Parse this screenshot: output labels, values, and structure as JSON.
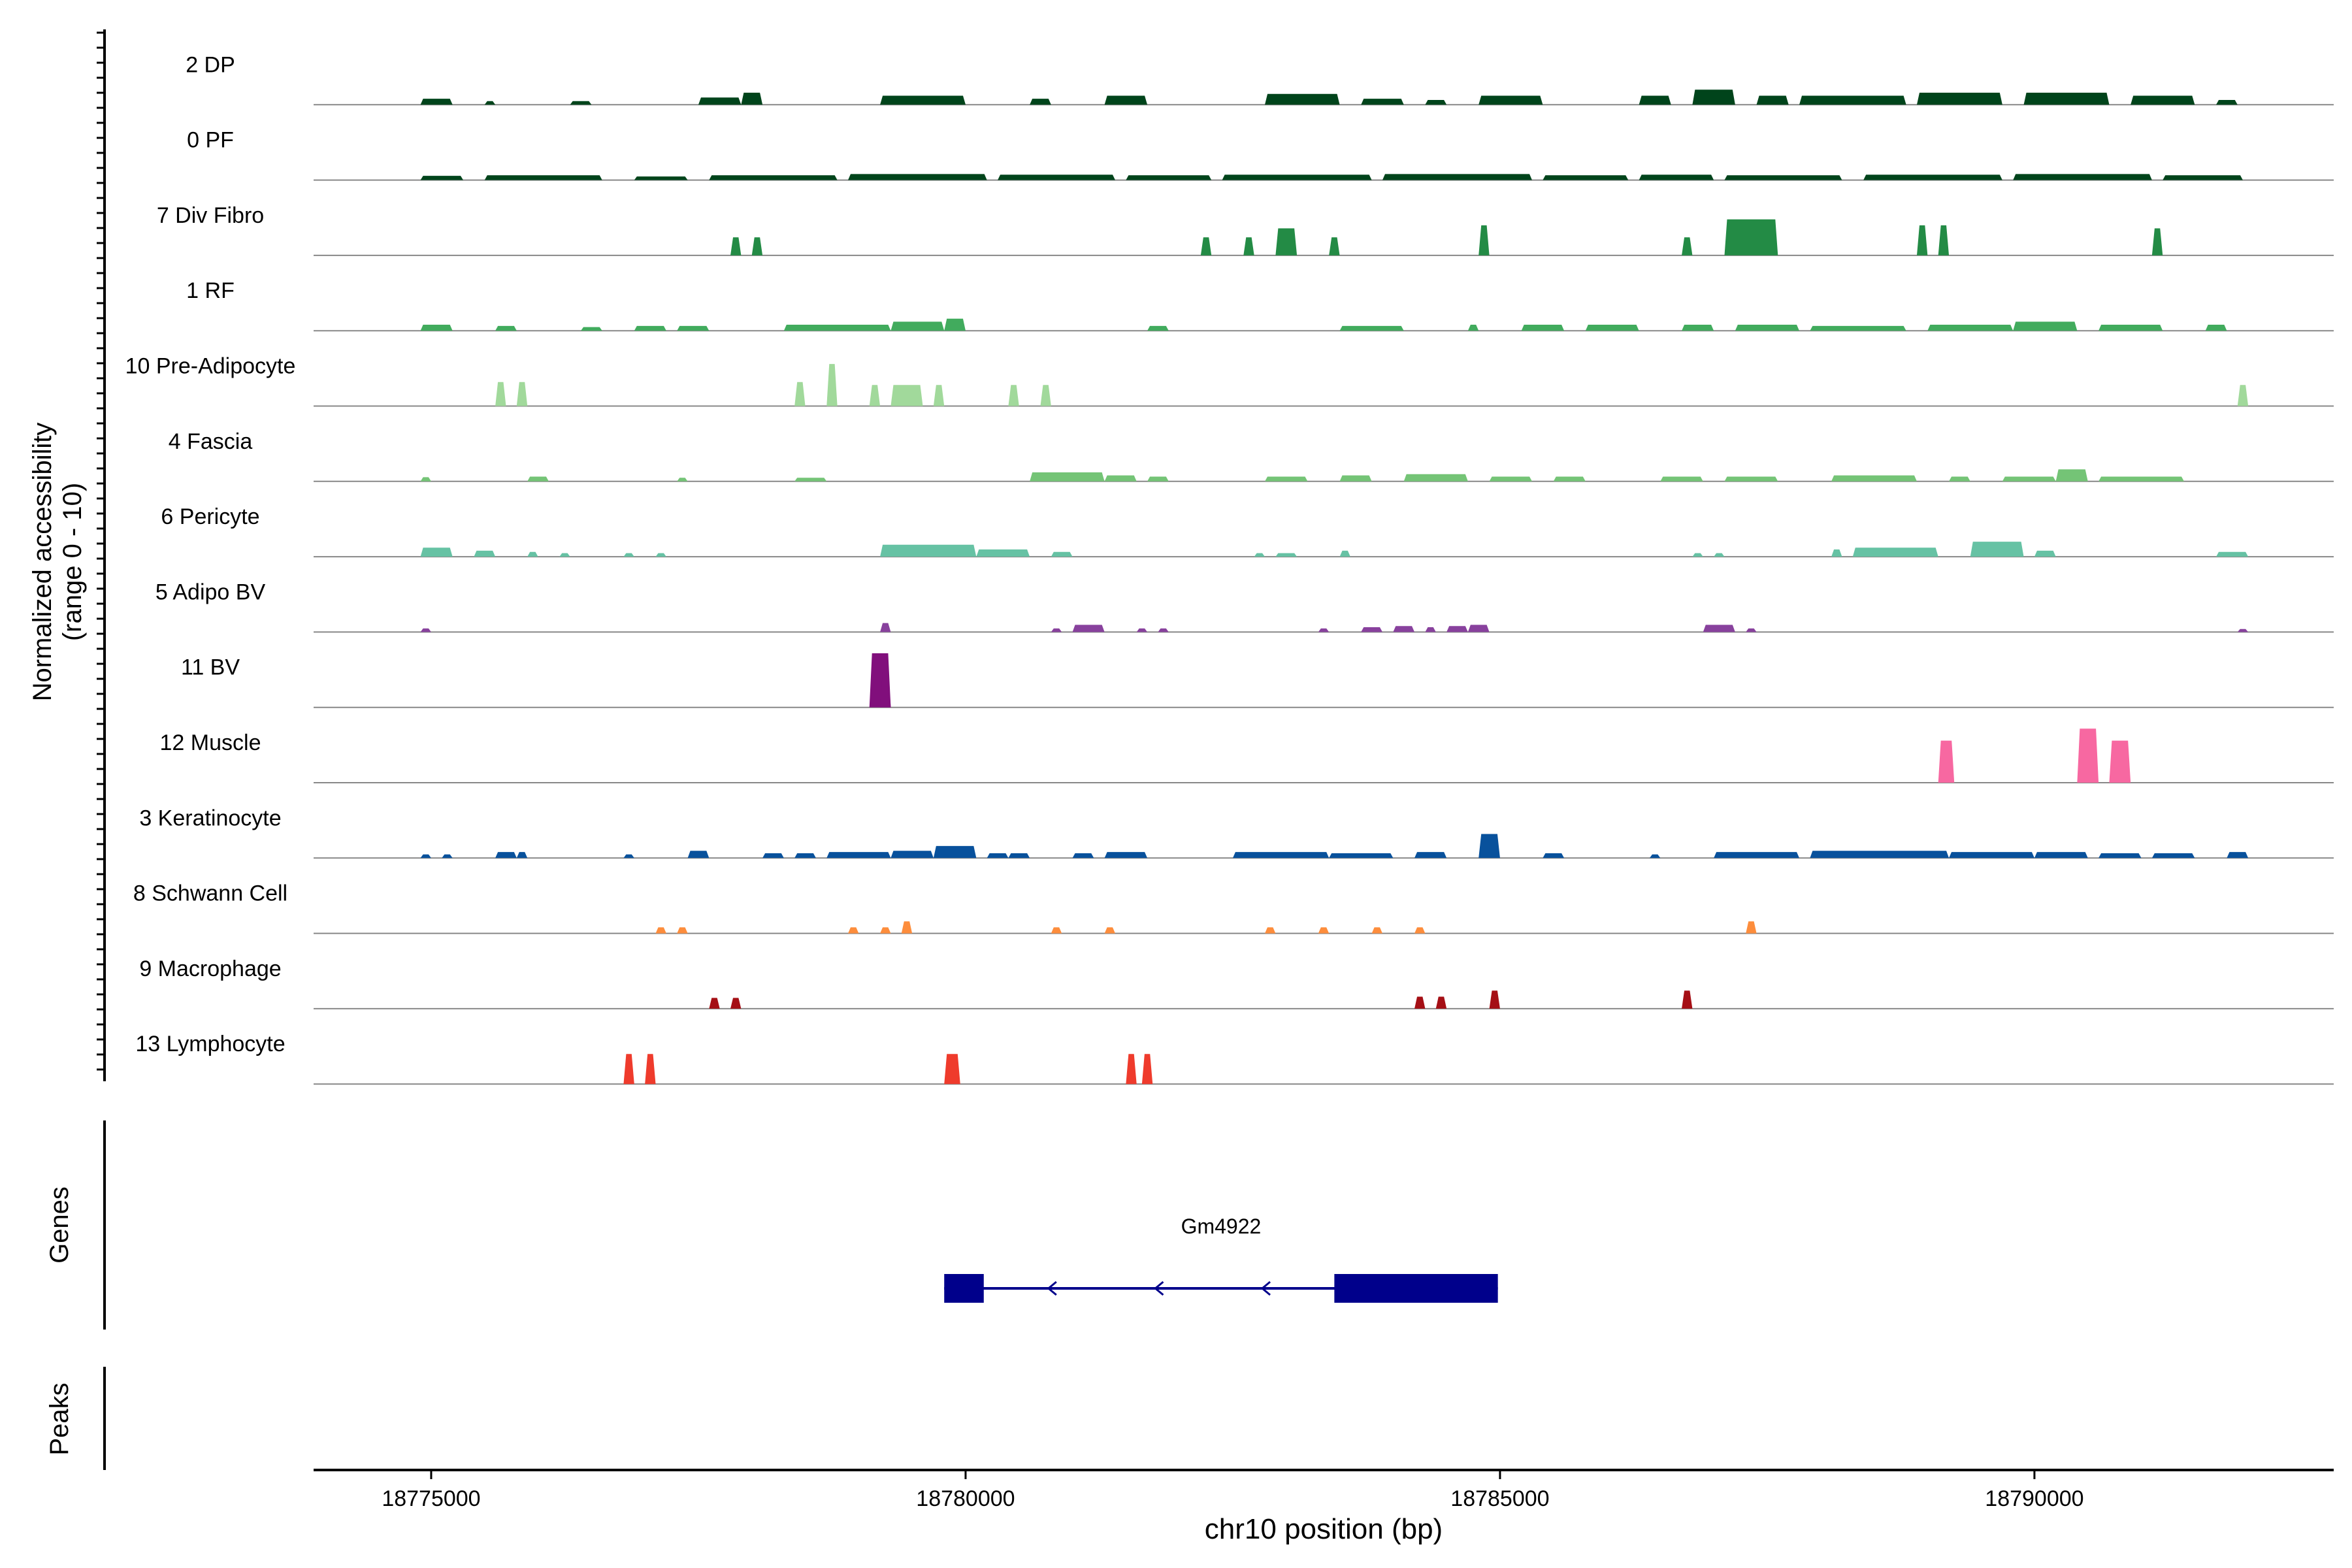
{
  "chart_data": {
    "type": "area",
    "title": "",
    "ylabel_line1": "Normalized accessibility",
    "ylabel_line2": "(range 0 - 10)",
    "xlabel": "chr10 position (bp)",
    "xlim": [
      18773900,
      18792800
    ],
    "ylim": [
      0,
      10
    ],
    "x_ticks": [
      18775000,
      18780000,
      18785000,
      18790000
    ],
    "x_tick_labels": [
      "18775000",
      "18780000",
      "18785000",
      "18790000"
    ],
    "tracks": [
      {
        "name": "2 DP",
        "color": "#00441b",
        "peaks": [
          [
            18774900,
            18775200,
            1
          ],
          [
            18775500,
            18775600,
            0.6
          ],
          [
            18776300,
            18776500,
            0.6
          ],
          [
            18777500,
            18777900,
            1.2
          ],
          [
            18777900,
            18778100,
            2
          ],
          [
            18779200,
            18780000,
            1.5
          ],
          [
            18780600,
            18780800,
            1
          ],
          [
            18781300,
            18781700,
            1.5
          ],
          [
            18782800,
            18783500,
            1.8
          ],
          [
            18783700,
            18784100,
            1
          ],
          [
            18784300,
            18784500,
            0.8
          ],
          [
            18784800,
            18785400,
            1.5
          ],
          [
            18786300,
            18786600,
            1.5
          ],
          [
            18786800,
            18787200,
            2.5
          ],
          [
            18787400,
            18787700,
            1.5
          ],
          [
            18787800,
            18788800,
            1.5
          ],
          [
            18788900,
            18789700,
            2
          ],
          [
            18789900,
            18790700,
            2
          ],
          [
            18790900,
            18791500,
            1.5
          ],
          [
            18791700,
            18791900,
            0.8
          ]
        ]
      },
      {
        "name": "0 PF",
        "color": "#00441b",
        "peaks": [
          [
            18774900,
            18775300,
            0.7
          ],
          [
            18775500,
            18776600,
            0.8
          ],
          [
            18776900,
            18777400,
            0.6
          ],
          [
            18777600,
            18778800,
            0.8
          ],
          [
            18778900,
            18780200,
            1
          ],
          [
            18780300,
            18781400,
            0.9
          ],
          [
            18781500,
            18782300,
            0.8
          ],
          [
            18782400,
            18783800,
            0.9
          ],
          [
            18783900,
            18785300,
            1
          ],
          [
            18785400,
            18786200,
            0.8
          ],
          [
            18786300,
            18787000,
            0.9
          ],
          [
            18787100,
            18788200,
            0.8
          ],
          [
            18788400,
            18789700,
            0.9
          ],
          [
            18789800,
            18791100,
            1
          ],
          [
            18791200,
            18791950,
            0.8
          ]
        ]
      },
      {
        "name": "7 Div Fibro",
        "color": "#238b45",
        "peaks": [
          [
            18777800,
            18777900,
            3
          ],
          [
            18778000,
            18778100,
            3
          ],
          [
            18782200,
            18782300,
            3
          ],
          [
            18782600,
            18782700,
            3
          ],
          [
            18782900,
            18783100,
            4.5
          ],
          [
            18783400,
            18783500,
            3
          ],
          [
            18784800,
            18784900,
            5
          ],
          [
            18786700,
            18786800,
            3
          ],
          [
            18787100,
            18787600,
            6
          ],
          [
            18788900,
            18789000,
            5
          ],
          [
            18789100,
            18789200,
            5
          ],
          [
            18791100,
            18791200,
            4.5
          ]
        ]
      },
      {
        "name": "1 RF",
        "color": "#41ab5d",
        "peaks": [
          [
            18774900,
            18775200,
            1
          ],
          [
            18775600,
            18775800,
            0.8
          ],
          [
            18776400,
            18776600,
            0.6
          ],
          [
            18776900,
            18777200,
            0.8
          ],
          [
            18777300,
            18777600,
            0.8
          ],
          [
            18778300,
            18779300,
            1
          ],
          [
            18779300,
            18779800,
            1.5
          ],
          [
            18779800,
            18780000,
            2
          ],
          [
            18781700,
            18781900,
            0.8
          ],
          [
            18783500,
            18784100,
            0.8
          ],
          [
            18784700,
            18784800,
            1
          ],
          [
            18785200,
            18785600,
            1
          ],
          [
            18785800,
            18786300,
            1
          ],
          [
            18786700,
            18787000,
            1
          ],
          [
            18787200,
            18787800,
            1
          ],
          [
            18787900,
            18788800,
            0.8
          ],
          [
            18789000,
            18789800,
            1
          ],
          [
            18789800,
            18790400,
            1.5
          ],
          [
            18790600,
            18791200,
            1
          ],
          [
            18791600,
            18791800,
            1
          ]
        ]
      },
      {
        "name": "10 Pre-Adipocyte",
        "color": "#a1d99b",
        "peaks": [
          [
            18775600,
            18775700,
            4
          ],
          [
            18775800,
            18775900,
            4
          ],
          [
            18778400,
            18778500,
            4
          ],
          [
            18778700,
            18778800,
            7
          ],
          [
            18779100,
            18779200,
            3.5
          ],
          [
            18779300,
            18779600,
            3.5
          ],
          [
            18779700,
            18779800,
            3.5
          ],
          [
            18780400,
            18780500,
            3.5
          ],
          [
            18780700,
            18780800,
            3.5
          ],
          [
            18791900,
            18792000,
            3.5
          ]
        ]
      },
      {
        "name": "4 Fascia",
        "color": "#74c476",
        "peaks": [
          [
            18774900,
            18775000,
            0.7
          ],
          [
            18775900,
            18776100,
            0.8
          ],
          [
            18777300,
            18777400,
            0.6
          ],
          [
            18778400,
            18778700,
            0.6
          ],
          [
            18780600,
            18781300,
            1.5
          ],
          [
            18781300,
            18781600,
            1
          ],
          [
            18781700,
            18781900,
            0.8
          ],
          [
            18782800,
            18783200,
            0.8
          ],
          [
            18783500,
            18783800,
            1
          ],
          [
            18784100,
            18784700,
            1.2
          ],
          [
            18784900,
            18785300,
            0.8
          ],
          [
            18785500,
            18785800,
            0.8
          ],
          [
            18786500,
            18786900,
            0.8
          ],
          [
            18787100,
            18787600,
            0.8
          ],
          [
            18788100,
            18788900,
            1
          ],
          [
            18789200,
            18789400,
            0.8
          ],
          [
            18789700,
            18790200,
            0.8
          ],
          [
            18790200,
            18790500,
            2
          ],
          [
            18790600,
            18791400,
            0.8
          ]
        ]
      },
      {
        "name": "6 Pericyte",
        "color": "#66c2a4",
        "peaks": [
          [
            18774900,
            18775200,
            1.5
          ],
          [
            18775400,
            18775600,
            1
          ],
          [
            18775900,
            18776000,
            0.8
          ],
          [
            18776200,
            18776300,
            0.6
          ],
          [
            18776800,
            18776900,
            0.6
          ],
          [
            18777100,
            18777200,
            0.6
          ],
          [
            18779200,
            18780100,
            2
          ],
          [
            18780100,
            18780600,
            1.2
          ],
          [
            18780800,
            18781000,
            0.8
          ],
          [
            18782700,
            18782800,
            0.6
          ],
          [
            18782900,
            18783100,
            0.6
          ],
          [
            18783500,
            18783600,
            1
          ],
          [
            18786800,
            18786900,
            0.6
          ],
          [
            18787000,
            18787100,
            0.6
          ],
          [
            18788100,
            18788200,
            1.2
          ],
          [
            18788300,
            18789100,
            1.5
          ],
          [
            18789400,
            18789900,
            2.5
          ],
          [
            18790000,
            18790200,
            1
          ],
          [
            18791700,
            18792000,
            0.8
          ]
        ]
      },
      {
        "name": "5 Adipo BV",
        "color": "#88419d",
        "peaks": [
          [
            18774900,
            18775000,
            0.6
          ],
          [
            18779200,
            18779300,
            1.5
          ],
          [
            18780800,
            18780900,
            0.6
          ],
          [
            18781000,
            18781300,
            1.2
          ],
          [
            18781600,
            18781700,
            0.6
          ],
          [
            18781800,
            18781900,
            0.6
          ],
          [
            18783300,
            18783400,
            0.6
          ],
          [
            18783700,
            18783900,
            0.8
          ],
          [
            18784000,
            18784200,
            1
          ],
          [
            18784300,
            18784400,
            0.8
          ],
          [
            18784500,
            18784700,
            1
          ],
          [
            18784700,
            18784900,
            1.2
          ],
          [
            18786900,
            18787200,
            1.2
          ],
          [
            18787300,
            18787400,
            0.6
          ],
          [
            18791900,
            18792000,
            0.5
          ]
        ]
      },
      {
        "name": "11 BV",
        "color": "#810f7c",
        "peaks": [
          [
            18779100,
            18779300,
            9
          ],
          [
            18779200,
            18779300,
            6
          ]
        ]
      },
      {
        "name": "12 Muscle",
        "color": "#f768a1",
        "peaks": [
          [
            18789100,
            18789250,
            7
          ],
          [
            18790400,
            18790600,
            9
          ],
          [
            18790700,
            18790900,
            7
          ]
        ]
      },
      {
        "name": "3 Keratinocyte",
        "color": "#08519c",
        "peaks": [
          [
            18774900,
            18775000,
            0.6
          ],
          [
            18775100,
            18775200,
            0.6
          ],
          [
            18775600,
            18775800,
            1
          ],
          [
            18775800,
            18775900,
            1
          ],
          [
            18776800,
            18776900,
            0.6
          ],
          [
            18777400,
            18777600,
            1.2
          ],
          [
            18778100,
            18778300,
            0.8
          ],
          [
            18778400,
            18778600,
            0.8
          ],
          [
            18778700,
            18779300,
            1
          ],
          [
            18779300,
            18779700,
            1.2
          ],
          [
            18779700,
            18780100,
            2
          ],
          [
            18780200,
            18780400,
            0.8
          ],
          [
            18780400,
            18780600,
            0.8
          ],
          [
            18781000,
            18781200,
            0.8
          ],
          [
            18781300,
            18781700,
            1
          ],
          [
            18782500,
            18783400,
            1
          ],
          [
            18783400,
            18784000,
            0.8
          ],
          [
            18784200,
            18784500,
            1
          ],
          [
            18784800,
            18785000,
            4
          ],
          [
            18785400,
            18785600,
            0.8
          ],
          [
            18786400,
            18786500,
            0.6
          ],
          [
            18787000,
            18787800,
            1
          ],
          [
            18787900,
            18789200,
            1.2
          ],
          [
            18789200,
            18790000,
            1
          ],
          [
            18790000,
            18790500,
            1
          ],
          [
            18790600,
            18791000,
            0.8
          ],
          [
            18791100,
            18791500,
            0.8
          ],
          [
            18791800,
            18792000,
            1
          ]
        ]
      },
      {
        "name": "8 Schwann Cell",
        "color": "#fd8d3c",
        "peaks": [
          [
            18777100,
            18777200,
            1
          ],
          [
            18777300,
            18777400,
            1
          ],
          [
            18778900,
            18779000,
            1
          ],
          [
            18779200,
            18779300,
            1
          ],
          [
            18779400,
            18779500,
            2
          ],
          [
            18780800,
            18780900,
            1
          ],
          [
            18781300,
            18781400,
            1
          ],
          [
            18782800,
            18782900,
            1
          ],
          [
            18783300,
            18783400,
            1
          ],
          [
            18783800,
            18783900,
            1
          ],
          [
            18784200,
            18784300,
            1
          ],
          [
            18787300,
            18787400,
            2
          ]
        ]
      },
      {
        "name": "9 Macrophage",
        "color": "#a50f15",
        "peaks": [
          [
            18777600,
            18777700,
            1.8
          ],
          [
            18777800,
            18777900,
            1.8
          ],
          [
            18784200,
            18784300,
            2
          ],
          [
            18784400,
            18784500,
            2
          ],
          [
            18784900,
            18785000,
            3
          ],
          [
            18786700,
            18786800,
            3
          ]
        ]
      },
      {
        "name": "13 Lymphocyte",
        "color": "#ef3b2c",
        "peaks": [
          [
            18776800,
            18776900,
            5
          ],
          [
            18777000,
            18777100,
            5
          ],
          [
            18779800,
            18779950,
            5
          ],
          [
            18781500,
            18781600,
            5
          ],
          [
            18781650,
            18781750,
            5
          ]
        ]
      }
    ],
    "genes_label": "Genes",
    "peaks_label": "Peaks",
    "gene": {
      "name": "Gm4922",
      "start": 18779800,
      "end": 18784980,
      "strand": "-",
      "color": "#00008b",
      "exons": [
        [
          18779800,
          18780170
        ],
        [
          18783450,
          18784980
        ]
      ],
      "arrow_positions": [
        18780800,
        18781800,
        18782800
      ]
    }
  }
}
